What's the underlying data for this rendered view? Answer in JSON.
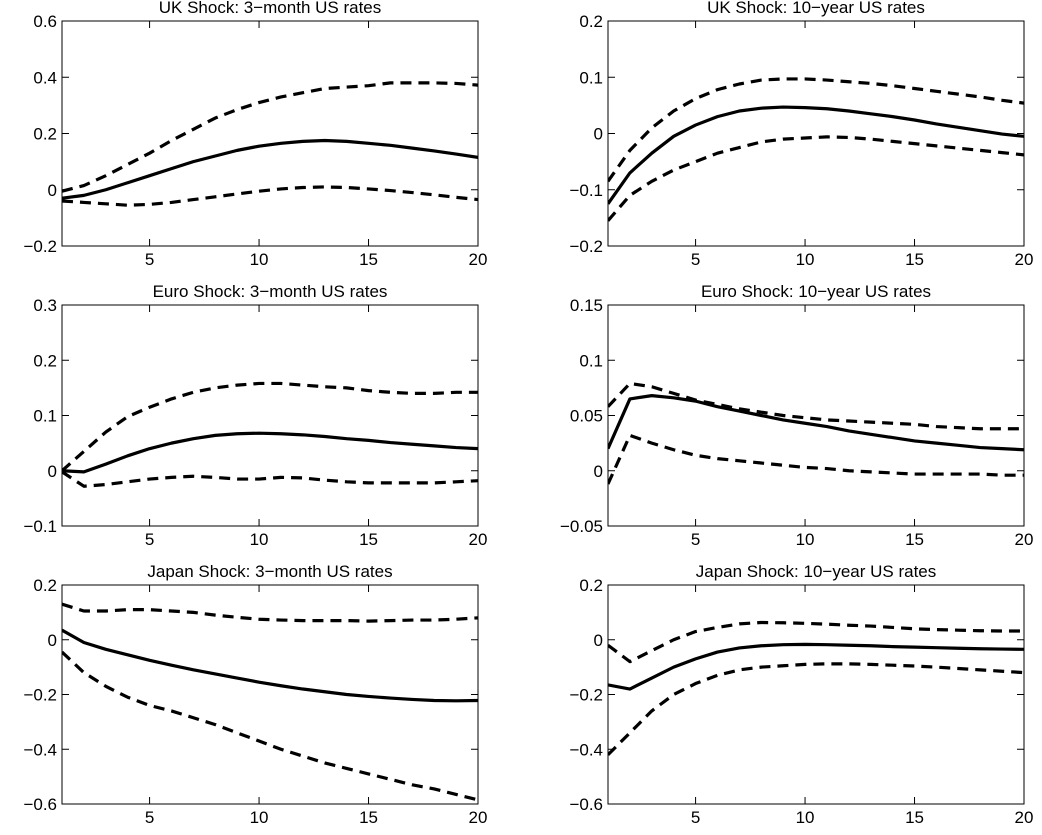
{
  "chart_data": [
    {
      "type": "line",
      "title": "UK Shock: 3−month US rates",
      "xlim": [
        1,
        20
      ],
      "ylim": [
        -0.2,
        0.6
      ],
      "xticks": [
        5,
        10,
        15,
        20
      ],
      "yticks": [
        -0.2,
        0,
        0.2,
        0.4,
        0.6
      ],
      "ytick_labels": [
        "−0.2",
        "0",
        "0.2",
        "0.4",
        "0.6"
      ],
      "grid": false,
      "x": [
        1,
        2,
        3,
        4,
        5,
        6,
        7,
        8,
        9,
        10,
        11,
        12,
        13,
        14,
        15,
        16,
        17,
        18,
        19,
        20
      ],
      "series": [
        {
          "style": "solid",
          "values": [
            -0.03,
            -0.02,
            0.0,
            0.025,
            0.05,
            0.075,
            0.1,
            0.12,
            0.14,
            0.155,
            0.165,
            0.172,
            0.175,
            0.172,
            0.165,
            0.158,
            0.148,
            0.138,
            0.127,
            0.115
          ]
        },
        {
          "style": "dashed",
          "values": [
            -0.005,
            0.015,
            0.05,
            0.09,
            0.13,
            0.175,
            0.215,
            0.255,
            0.285,
            0.31,
            0.33,
            0.345,
            0.36,
            0.365,
            0.37,
            0.38,
            0.38,
            0.38,
            0.378,
            0.372
          ]
        },
        {
          "style": "dashed",
          "values": [
            -0.04,
            -0.045,
            -0.05,
            -0.055,
            -0.052,
            -0.045,
            -0.035,
            -0.025,
            -0.015,
            -0.005,
            0.003,
            0.008,
            0.01,
            0.008,
            0.003,
            -0.003,
            -0.01,
            -0.018,
            -0.027,
            -0.035
          ]
        }
      ]
    },
    {
      "type": "line",
      "title": "UK Shock: 10−year US rates",
      "xlim": [
        1,
        20
      ],
      "ylim": [
        -0.2,
        0.2
      ],
      "xticks": [
        5,
        10,
        15,
        20
      ],
      "yticks": [
        -0.2,
        -0.1,
        0,
        0.1,
        0.2
      ],
      "ytick_labels": [
        "−0.2",
        "−0.1",
        "0",
        "0.1",
        "0.2"
      ],
      "grid": false,
      "x": [
        1,
        2,
        3,
        4,
        5,
        6,
        7,
        8,
        9,
        10,
        11,
        12,
        13,
        14,
        15,
        16,
        17,
        18,
        19,
        20
      ],
      "series": [
        {
          "style": "solid",
          "values": [
            -0.125,
            -0.07,
            -0.035,
            -0.005,
            0.015,
            0.03,
            0.04,
            0.045,
            0.047,
            0.046,
            0.044,
            0.04,
            0.035,
            0.03,
            0.024,
            0.017,
            0.011,
            0.005,
            -0.001,
            -0.005
          ]
        },
        {
          "style": "dashed",
          "values": [
            -0.085,
            -0.03,
            0.01,
            0.04,
            0.062,
            0.078,
            0.088,
            0.095,
            0.097,
            0.097,
            0.095,
            0.092,
            0.089,
            0.085,
            0.08,
            0.075,
            0.07,
            0.065,
            0.059,
            0.054
          ]
        },
        {
          "style": "dashed",
          "values": [
            -0.155,
            -0.11,
            -0.085,
            -0.065,
            -0.05,
            -0.035,
            -0.025,
            -0.015,
            -0.01,
            -0.008,
            -0.006,
            -0.007,
            -0.01,
            -0.014,
            -0.018,
            -0.022,
            -0.026,
            -0.03,
            -0.034,
            -0.038
          ]
        }
      ]
    },
    {
      "type": "line",
      "title": "Euro Shock: 3−month US rates",
      "xlim": [
        1,
        20
      ],
      "ylim": [
        -0.1,
        0.3
      ],
      "xticks": [
        5,
        10,
        15,
        20
      ],
      "yticks": [
        -0.1,
        0,
        0.1,
        0.2,
        0.3
      ],
      "ytick_labels": [
        "−0.1",
        "0",
        "0.1",
        "0.2",
        "0.3"
      ],
      "grid": false,
      "x": [
        1,
        2,
        3,
        4,
        5,
        6,
        7,
        8,
        9,
        10,
        11,
        12,
        13,
        14,
        15,
        16,
        17,
        18,
        19,
        20
      ],
      "series": [
        {
          "style": "solid",
          "values": [
            0.0,
            -0.002,
            0.012,
            0.027,
            0.04,
            0.05,
            0.058,
            0.064,
            0.067,
            0.068,
            0.067,
            0.065,
            0.062,
            0.058,
            0.055,
            0.051,
            0.048,
            0.045,
            0.042,
            0.04
          ]
        },
        {
          "style": "dashed",
          "values": [
            0.0,
            0.035,
            0.07,
            0.098,
            0.115,
            0.13,
            0.142,
            0.15,
            0.155,
            0.158,
            0.158,
            0.155,
            0.152,
            0.15,
            0.145,
            0.142,
            0.14,
            0.14,
            0.142,
            0.142
          ]
        },
        {
          "style": "dashed",
          "values": [
            -0.002,
            -0.028,
            -0.025,
            -0.02,
            -0.015,
            -0.012,
            -0.01,
            -0.012,
            -0.015,
            -0.015,
            -0.012,
            -0.013,
            -0.017,
            -0.02,
            -0.022,
            -0.022,
            -0.022,
            -0.022,
            -0.02,
            -0.018
          ]
        }
      ]
    },
    {
      "type": "line",
      "title": "Euro Shock: 10−year US rates",
      "xlim": [
        1,
        20
      ],
      "ylim": [
        -0.05,
        0.15
      ],
      "xticks": [
        5,
        10,
        15,
        20
      ],
      "yticks": [
        -0.05,
        0,
        0.05,
        0.1,
        0.15
      ],
      "ytick_labels": [
        "−0.05",
        "0",
        "0.05",
        "0.1",
        "0.15"
      ],
      "grid": false,
      "x": [
        1,
        2,
        3,
        4,
        5,
        6,
        7,
        8,
        9,
        10,
        11,
        12,
        13,
        14,
        15,
        16,
        17,
        18,
        19,
        20
      ],
      "series": [
        {
          "style": "solid",
          "values": [
            0.02,
            0.065,
            0.068,
            0.066,
            0.063,
            0.058,
            0.054,
            0.05,
            0.046,
            0.043,
            0.04,
            0.036,
            0.033,
            0.03,
            0.027,
            0.025,
            0.023,
            0.021,
            0.02,
            0.019
          ]
        },
        {
          "style": "dashed",
          "values": [
            0.058,
            0.079,
            0.076,
            0.07,
            0.064,
            0.06,
            0.056,
            0.053,
            0.05,
            0.048,
            0.046,
            0.045,
            0.044,
            0.043,
            0.042,
            0.04,
            0.039,
            0.038,
            0.038,
            0.038
          ]
        },
        {
          "style": "dashed",
          "values": [
            -0.012,
            0.032,
            0.025,
            0.019,
            0.014,
            0.011,
            0.009,
            0.007,
            0.005,
            0.003,
            0.002,
            0.0,
            -0.001,
            -0.002,
            -0.003,
            -0.003,
            -0.003,
            -0.003,
            -0.004,
            -0.004
          ]
        }
      ]
    },
    {
      "type": "line",
      "title": "Japan Shock: 3−month US rates",
      "xlim": [
        1,
        20
      ],
      "ylim": [
        -0.6,
        0.2
      ],
      "xticks": [
        5,
        10,
        15,
        20
      ],
      "yticks": [
        -0.6,
        -0.4,
        -0.2,
        0,
        0.2
      ],
      "ytick_labels": [
        "−0.6",
        "−0.4",
        "−0.2",
        "0",
        "0.2"
      ],
      "grid": false,
      "x": [
        1,
        2,
        3,
        4,
        5,
        6,
        7,
        8,
        9,
        10,
        11,
        12,
        13,
        14,
        15,
        16,
        17,
        18,
        19,
        20
      ],
      "series": [
        {
          "style": "solid",
          "values": [
            0.035,
            -0.01,
            -0.035,
            -0.055,
            -0.075,
            -0.093,
            -0.11,
            -0.125,
            -0.14,
            -0.155,
            -0.168,
            -0.18,
            -0.19,
            -0.2,
            -0.207,
            -0.213,
            -0.218,
            -0.222,
            -0.223,
            -0.222
          ]
        },
        {
          "style": "dashed",
          "values": [
            0.13,
            0.105,
            0.105,
            0.11,
            0.11,
            0.105,
            0.1,
            0.09,
            0.082,
            0.075,
            0.072,
            0.07,
            0.07,
            0.07,
            0.068,
            0.07,
            0.072,
            0.072,
            0.075,
            0.08
          ]
        },
        {
          "style": "dashed",
          "values": [
            -0.045,
            -0.12,
            -0.17,
            -0.21,
            -0.24,
            -0.26,
            -0.285,
            -0.31,
            -0.34,
            -0.37,
            -0.4,
            -0.425,
            -0.45,
            -0.47,
            -0.49,
            -0.51,
            -0.53,
            -0.545,
            -0.565,
            -0.585
          ]
        }
      ]
    },
    {
      "type": "line",
      "title": "Japan Shock: 10−year US rates",
      "xlim": [
        1,
        20
      ],
      "ylim": [
        -0.6,
        0.2
      ],
      "xticks": [
        5,
        10,
        15,
        20
      ],
      "yticks": [
        -0.6,
        -0.4,
        -0.2,
        0,
        0.2
      ],
      "ytick_labels": [
        "−0.6",
        "−0.4",
        "−0.2",
        "0",
        "0.2"
      ],
      "grid": false,
      "x": [
        1,
        2,
        3,
        4,
        5,
        6,
        7,
        8,
        9,
        10,
        11,
        12,
        13,
        14,
        15,
        16,
        17,
        18,
        19,
        20
      ],
      "series": [
        {
          "style": "solid",
          "values": [
            -0.165,
            -0.18,
            -0.14,
            -0.1,
            -0.07,
            -0.045,
            -0.03,
            -0.022,
            -0.018,
            -0.017,
            -0.018,
            -0.02,
            -0.022,
            -0.025,
            -0.027,
            -0.029,
            -0.031,
            -0.033,
            -0.034,
            -0.035
          ]
        },
        {
          "style": "dashed",
          "values": [
            -0.02,
            -0.08,
            -0.04,
            0.0,
            0.03,
            0.045,
            0.058,
            0.063,
            0.062,
            0.06,
            0.057,
            0.053,
            0.05,
            0.045,
            0.04,
            0.037,
            0.035,
            0.033,
            0.032,
            0.032
          ]
        },
        {
          "style": "dashed",
          "values": [
            -0.42,
            -0.34,
            -0.26,
            -0.2,
            -0.16,
            -0.13,
            -0.11,
            -0.1,
            -0.095,
            -0.09,
            -0.088,
            -0.088,
            -0.09,
            -0.093,
            -0.096,
            -0.1,
            -0.105,
            -0.11,
            -0.115,
            -0.12
          ]
        }
      ]
    }
  ]
}
